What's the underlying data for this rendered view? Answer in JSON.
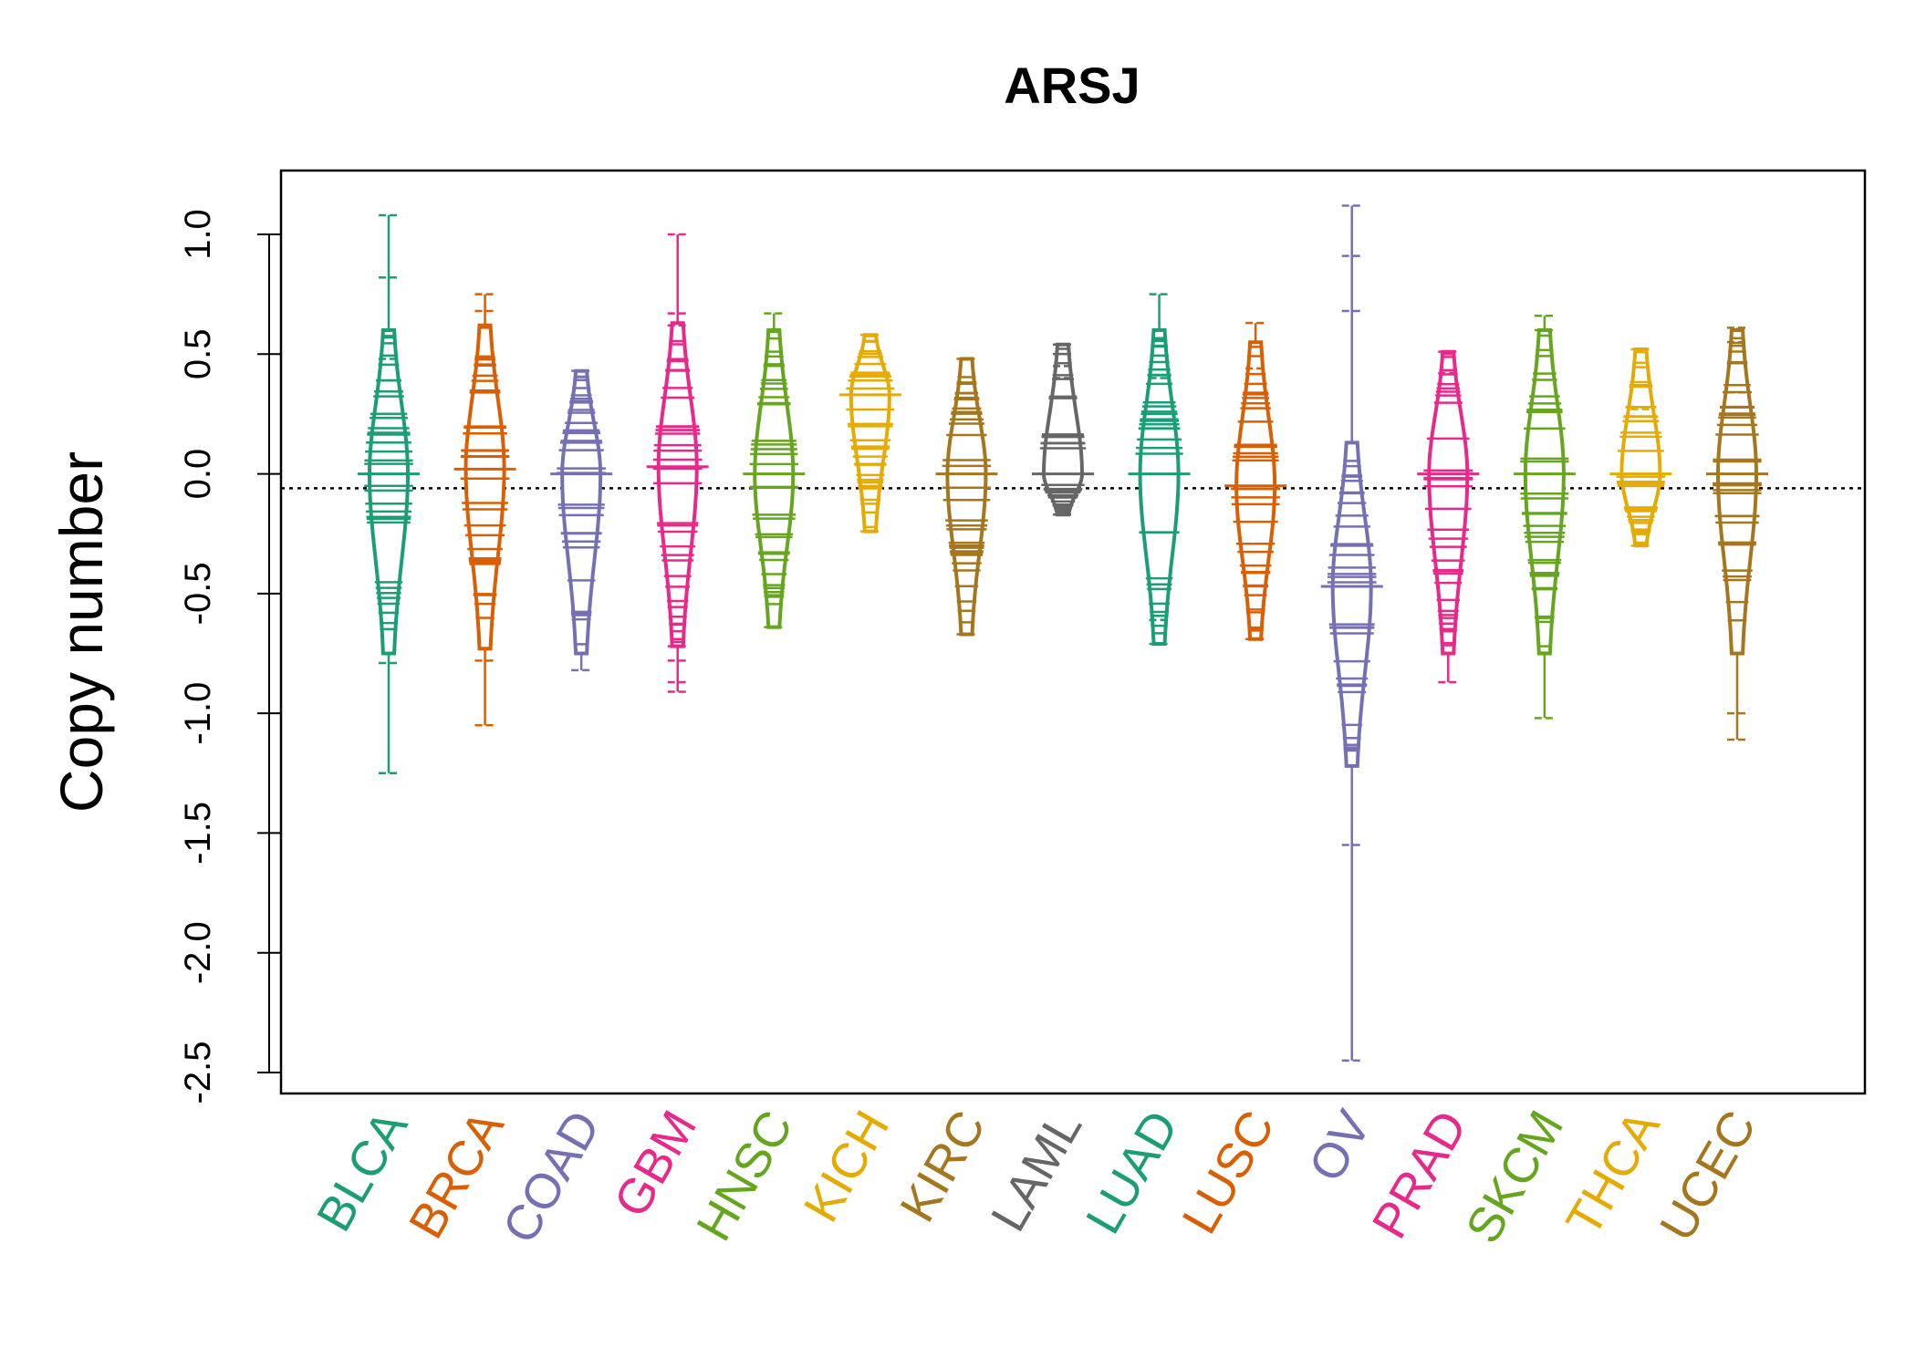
{
  "chart_data": {
    "type": "beanplot",
    "title": "ARSJ",
    "xlabel": "",
    "ylabel": "Copy number",
    "ylim": [
      -2.6,
      1.25
    ],
    "yticks": [
      1.0,
      0.5,
      0.0,
      -0.5,
      -1.0,
      -1.5,
      -2.0,
      -2.5
    ],
    "ytick_labels": [
      "1.0",
      "0.5",
      "0.0",
      "-0.5",
      "-1.0",
      "-1.5",
      "-2.0",
      "-2.5"
    ],
    "reference_line": -0.06,
    "categories": [
      "BLCA",
      "BRCA",
      "COAD",
      "GBM",
      "HNSC",
      "KICH",
      "KIRC",
      "LAML",
      "LUAD",
      "LUSC",
      "OV",
      "PRAD",
      "SKCM",
      "THCA",
      "UCEC"
    ],
    "colors": [
      "#1b9e77",
      "#d95f02",
      "#7570b3",
      "#e7298a",
      "#66a61e",
      "#e6ab02",
      "#a6761d",
      "#666666",
      "#1b9e77",
      "#d95f02",
      "#7570b3",
      "#e7298a",
      "#66a61e",
      "#e6ab02",
      "#a6761d"
    ],
    "series": [
      {
        "name": "BLCA",
        "median": 0.0,
        "min": -1.25,
        "max": 1.08,
        "outliers": [
          1.08,
          0.82,
          0.48,
          -0.79,
          -1.25
        ]
      },
      {
        "name": "BRCA",
        "median": 0.02,
        "min": -1.05,
        "max": 0.75,
        "outliers": [
          0.75,
          0.68,
          -0.78,
          -1.05
        ]
      },
      {
        "name": "COAD",
        "median": 0.0,
        "min": -0.82,
        "max": 0.43,
        "outliers": [
          0.43,
          -0.82
        ]
      },
      {
        "name": "GBM",
        "median": 0.03,
        "min": -0.91,
        "max": 1.0,
        "outliers": [
          1.0,
          0.67,
          0.62,
          -0.72,
          -0.78,
          -0.87,
          -0.91
        ]
      },
      {
        "name": "HNSC",
        "median": 0.0,
        "min": -0.64,
        "max": 0.67,
        "outliers": [
          0.67,
          -0.64
        ]
      },
      {
        "name": "KICH",
        "median": 0.33,
        "min": -0.24,
        "max": 0.58,
        "outliers": [
          0.58,
          -0.24
        ]
      },
      {
        "name": "KIRC",
        "median": 0.0,
        "min": -0.67,
        "max": 0.48,
        "outliers": [
          0.48,
          -0.67
        ]
      },
      {
        "name": "LAML",
        "median": 0.0,
        "min": -0.17,
        "max": 0.54,
        "outliers": [
          0.54,
          0.5,
          0.45,
          0.4,
          -0.17
        ]
      },
      {
        "name": "LUAD",
        "median": 0.0,
        "min": -0.71,
        "max": 0.75,
        "outliers": [
          0.75,
          0.4,
          -0.61,
          -0.71
        ]
      },
      {
        "name": "LUSC",
        "median": -0.05,
        "min": -0.69,
        "max": 0.63,
        "outliers": [
          0.63,
          0.44,
          -0.69
        ]
      },
      {
        "name": "OV",
        "median": -0.47,
        "min": -2.45,
        "max": 1.12,
        "outliers": [
          1.12,
          0.91,
          0.68,
          -1.55,
          -2.45
        ]
      },
      {
        "name": "PRAD",
        "median": 0.0,
        "min": -0.87,
        "max": 0.51,
        "outliers": [
          0.51,
          0.42,
          -0.87
        ]
      },
      {
        "name": "SKCM",
        "median": 0.0,
        "min": -1.02,
        "max": 0.66,
        "outliers": [
          0.66,
          0.6,
          -1.02
        ]
      },
      {
        "name": "THCA",
        "median": 0.0,
        "min": -0.3,
        "max": 0.52,
        "outliers": [
          0.52,
          0.27,
          -0.3
        ]
      },
      {
        "name": "UCEC",
        "median": 0.0,
        "min": -1.11,
        "max": 0.61,
        "outliers": [
          0.61,
          0.55,
          0.34,
          -1.0,
          -1.11
        ]
      }
    ]
  }
}
